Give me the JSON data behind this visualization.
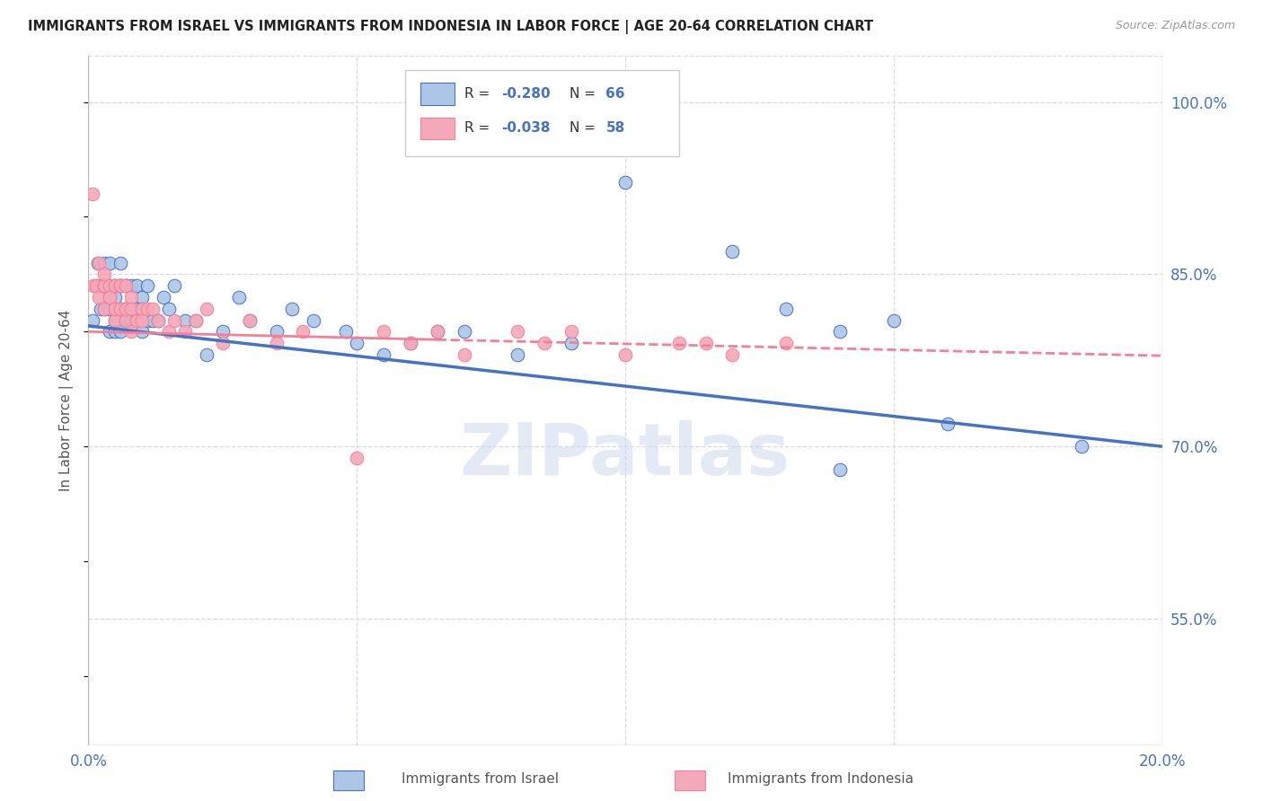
{
  "title": "IMMIGRANTS FROM ISRAEL VS IMMIGRANTS FROM INDONESIA IN LABOR FORCE | AGE 20-64 CORRELATION CHART",
  "source": "Source: ZipAtlas.com",
  "ylabel": "In Labor Force | Age 20-64",
  "yticks": [
    1.0,
    0.85,
    0.7,
    0.55
  ],
  "ytick_labels": [
    "100.0%",
    "85.0%",
    "70.0%",
    "55.0%"
  ],
  "xlim": [
    0.0,
    0.2
  ],
  "ylim": [
    0.44,
    1.04
  ],
  "watermark": "ZIPatlas",
  "legend_r_israel": "-0.280",
  "legend_n_israel": "66",
  "legend_r_indonesia": "-0.038",
  "legend_n_indonesia": "58",
  "color_israel": "#adc6e8",
  "color_indonesia": "#f4a8b8",
  "line_color_israel": "#4472c4",
  "line_color_indonesia": "#f48098",
  "israel_x": [
    0.0008,
    0.0015,
    0.0018,
    0.0022,
    0.0025,
    0.0028,
    0.003,
    0.003,
    0.003,
    0.004,
    0.004,
    0.004,
    0.004,
    0.005,
    0.005,
    0.005,
    0.005,
    0.006,
    0.006,
    0.006,
    0.006,
    0.007,
    0.007,
    0.007,
    0.007,
    0.008,
    0.008,
    0.008,
    0.009,
    0.009,
    0.009,
    0.01,
    0.01,
    0.01,
    0.011,
    0.011,
    0.012,
    0.013,
    0.014,
    0.015,
    0.016,
    0.018,
    0.02,
    0.022,
    0.025,
    0.028,
    0.03,
    0.035,
    0.038,
    0.042,
    0.048,
    0.05,
    0.055,
    0.06,
    0.065,
    0.07,
    0.08,
    0.09,
    0.1,
    0.12,
    0.13,
    0.14,
    0.15,
    0.16,
    0.185,
    0.14
  ],
  "israel_y": [
    0.81,
    0.84,
    0.86,
    0.82,
    0.84,
    0.84,
    0.82,
    0.86,
    0.84,
    0.8,
    0.84,
    0.82,
    0.86,
    0.81,
    0.83,
    0.8,
    0.84,
    0.82,
    0.84,
    0.86,
    0.8,
    0.81,
    0.84,
    0.82,
    0.84,
    0.82,
    0.81,
    0.84,
    0.81,
    0.82,
    0.84,
    0.8,
    0.83,
    0.82,
    0.81,
    0.84,
    0.81,
    0.81,
    0.83,
    0.82,
    0.84,
    0.81,
    0.81,
    0.78,
    0.8,
    0.83,
    0.81,
    0.8,
    0.82,
    0.81,
    0.8,
    0.79,
    0.78,
    0.79,
    0.8,
    0.8,
    0.78,
    0.79,
    0.93,
    0.87,
    0.82,
    0.8,
    0.81,
    0.72,
    0.7,
    0.68
  ],
  "indonesia_x": [
    0.0008,
    0.001,
    0.0015,
    0.002,
    0.002,
    0.003,
    0.003,
    0.003,
    0.003,
    0.003,
    0.004,
    0.004,
    0.004,
    0.005,
    0.005,
    0.005,
    0.005,
    0.005,
    0.006,
    0.006,
    0.006,
    0.006,
    0.006,
    0.007,
    0.007,
    0.007,
    0.007,
    0.008,
    0.008,
    0.008,
    0.009,
    0.01,
    0.01,
    0.011,
    0.012,
    0.013,
    0.015,
    0.016,
    0.018,
    0.02,
    0.022,
    0.025,
    0.03,
    0.035,
    0.04,
    0.05,
    0.055,
    0.06,
    0.065,
    0.07,
    0.08,
    0.085,
    0.09,
    0.1,
    0.11,
    0.115,
    0.12,
    0.13
  ],
  "indonesia_y": [
    0.92,
    0.84,
    0.84,
    0.83,
    0.86,
    0.84,
    0.84,
    0.82,
    0.84,
    0.85,
    0.83,
    0.84,
    0.83,
    0.81,
    0.84,
    0.82,
    0.84,
    0.82,
    0.84,
    0.84,
    0.82,
    0.82,
    0.84,
    0.82,
    0.84,
    0.81,
    0.82,
    0.83,
    0.82,
    0.8,
    0.81,
    0.82,
    0.81,
    0.82,
    0.82,
    0.81,
    0.8,
    0.81,
    0.8,
    0.81,
    0.82,
    0.79,
    0.81,
    0.79,
    0.8,
    0.69,
    0.8,
    0.79,
    0.8,
    0.78,
    0.8,
    0.79,
    0.8,
    0.78,
    0.79,
    0.79,
    0.78,
    0.79
  ],
  "trend_israel_x0": 0.0,
  "trend_israel_y0": 0.805,
  "trend_israel_x1": 0.2,
  "trend_israel_y1": 0.7,
  "trend_indonesia_solid_x0": 0.0,
  "trend_indonesia_solid_y0": 0.8,
  "trend_indonesia_solid_x1": 0.065,
  "trend_indonesia_solid_y1": 0.793,
  "trend_indonesia_dash_x0": 0.065,
  "trend_indonesia_dash_y0": 0.793,
  "trend_indonesia_dash_x1": 0.2,
  "trend_indonesia_dash_y1": 0.779,
  "background_color": "#ffffff",
  "grid_color": "#d8d8e8",
  "grid_linestyle": "--"
}
